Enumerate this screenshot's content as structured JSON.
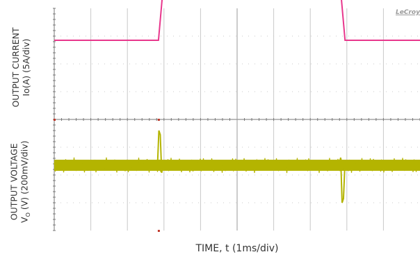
{
  "chart_data": [
    {
      "type": "line",
      "ylabel_line1": "OUTPUT CURRENT",
      "ylabel_line2": "Io(A) (5A/div)",
      "x_divisions": 10,
      "y_divisions": 4,
      "series": [
        {
          "color": "#e8378c",
          "x": [
            0,
            2.85,
            2.95,
            7.85,
            7.95,
            10
          ],
          "y": [
            2.85,
            2.85,
            4.35,
            4.35,
            2.85,
            2.85
          ]
        }
      ]
    },
    {
      "type": "line",
      "ylabel_line1": "OUTPUT VOLTAGE",
      "ylabel_line2": "V",
      "ylabel_sub": "O",
      "ylabel_rest": " (V) (200mV/div)",
      "x_divisions": 10,
      "y_divisions": 4,
      "series": [
        {
          "color": "#b4b400",
          "baseline": 2.35,
          "ripple_band": 0.4,
          "overshoot": {
            "x": 2.88,
            "y": 3.6
          },
          "undershoot": {
            "x": 7.87,
            "y": 1.0
          }
        }
      ]
    }
  ],
  "xlabel": "TIME, t (1ms/div)",
  "brand": "LeCroy",
  "colors": {
    "grid": "#c8c8c8",
    "axis": "#777777",
    "tick": "#c0392b"
  }
}
